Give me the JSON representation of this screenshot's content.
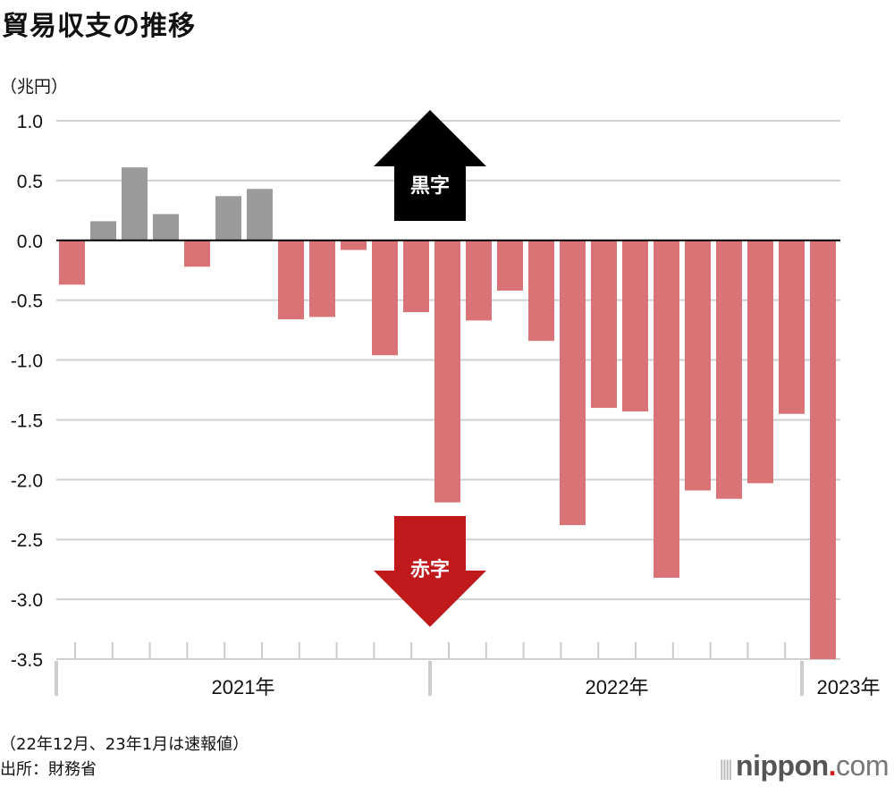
{
  "title": "貿易収支の推移",
  "unit": "（兆円）",
  "note": "（22年12月、23年1月は速報値）",
  "source": "出所：財務省",
  "logo": {
    "name": "nippon",
    "dot": ".",
    "suffix": "com"
  },
  "chart_data": {
    "type": "bar",
    "title": "貿易収支の推移",
    "ylabel": "（兆円）",
    "ylim": [
      -3.5,
      1.0
    ],
    "yticks": [
      "1.0",
      "0.5",
      "0.0",
      "-0.5",
      "-1.0",
      "-1.5",
      "-2.0",
      "-2.5",
      "-3.0",
      "-3.5"
    ],
    "grid": true,
    "year_labels": [
      "2021年",
      "2022年",
      "2023年"
    ],
    "categories": [
      "2021-01",
      "2021-02",
      "2021-03",
      "2021-04",
      "2021-05",
      "2021-06",
      "2021-07",
      "2021-08",
      "2021-09",
      "2021-10",
      "2021-11",
      "2021-12",
      "2022-01",
      "2022-02",
      "2022-03",
      "2022-04",
      "2022-05",
      "2022-06",
      "2022-07",
      "2022-08",
      "2022-09",
      "2022-10",
      "2022-11",
      "2022-12",
      "2023-01"
    ],
    "values": [
      -0.37,
      0.16,
      0.61,
      0.22,
      -0.22,
      0.37,
      0.43,
      -0.66,
      -0.64,
      -0.08,
      -0.96,
      -0.6,
      -2.19,
      -0.67,
      -0.42,
      -0.84,
      -2.38,
      -1.4,
      -1.43,
      -2.82,
      -2.09,
      -2.16,
      -2.03,
      -1.45,
      -3.5
    ],
    "annotations": {
      "surplus": "黒字",
      "deficit": "赤字"
    },
    "colors": {
      "surplus": "#9b9b9b",
      "deficit": "#d97375",
      "surplus_arrow": "#000000",
      "deficit_arrow": "#c0191c"
    }
  }
}
